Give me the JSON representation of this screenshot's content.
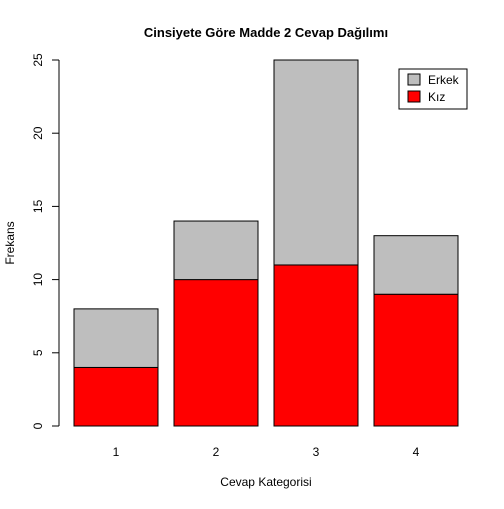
{
  "chart_data": {
    "type": "bar",
    "stacked": true,
    "title": "Cinsiyete Göre Madde 2 Cevap Dağılımı",
    "xlabel": "Cevap Kategorisi",
    "ylabel": "Frekans",
    "categories": [
      "1",
      "2",
      "3",
      "4"
    ],
    "series": [
      {
        "name": "Kız",
        "values": [
          4,
          10,
          11,
          9
        ],
        "color": "#ff0000"
      },
      {
        "name": "Erkek",
        "values": [
          4,
          4,
          14,
          4
        ],
        "color": "#bebebe"
      }
    ],
    "ylim": [
      0,
      25
    ],
    "yticks": [
      "0",
      "5",
      "10",
      "15",
      "20",
      "25"
    ],
    "legend": {
      "position": "top-right",
      "entries": [
        {
          "label": "Erkek",
          "color": "#bebebe"
        },
        {
          "label": "Kız",
          "color": "#ff0000"
        }
      ]
    },
    "grid": false
  }
}
